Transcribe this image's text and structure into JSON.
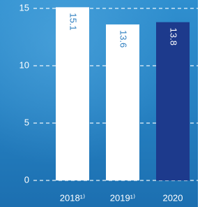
{
  "chart_data": {
    "type": "bar",
    "categories": [
      "2018¹⁾",
      "2019¹⁾",
      "2020"
    ],
    "values": [
      15.1,
      13.6,
      13.8
    ],
    "colors": [
      "#ffffff",
      "#ffffff",
      "#1d3a8c"
    ],
    "ylim": [
      0,
      15
    ],
    "yticks": [
      0,
      5,
      10,
      15
    ],
    "grid": true
  }
}
